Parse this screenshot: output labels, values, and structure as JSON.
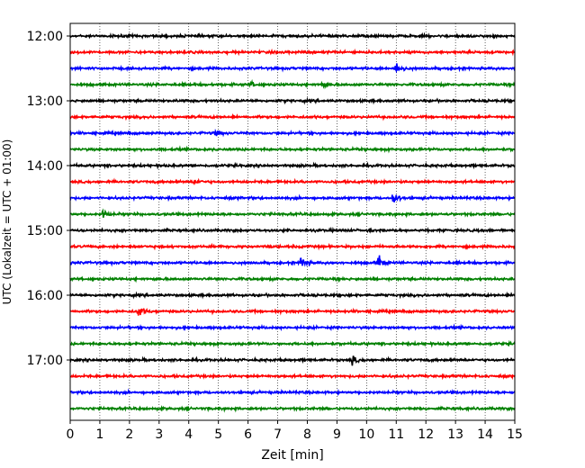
{
  "chart_data": {
    "type": "line",
    "subtype": "helicorder",
    "xlabel": "Zeit  [min]",
    "ylabel": "UTC (Lokalzeit = UTC + 01:00)",
    "xlim": [
      0,
      15
    ],
    "x_ticks": [
      "0",
      "1",
      "2",
      "3",
      "4",
      "5",
      "6",
      "7",
      "8",
      "9",
      "10",
      "11",
      "12",
      "13",
      "14",
      "15"
    ],
    "y_tick_labels": [
      "12:00",
      "13:00",
      "14:00",
      "15:00",
      "16:00",
      "17:00"
    ],
    "row_start": "12:00",
    "row_minutes": 15,
    "grid": "vertical-dotted",
    "trace_colors": [
      "#000000",
      "#ff0000",
      "#0000ff",
      "#008000"
    ],
    "events": [
      {
        "row": "12:30",
        "minute": 11.0,
        "amplitude": "large"
      },
      {
        "row": "12:45",
        "minute": 6.1,
        "amplitude": "small"
      },
      {
        "row": "12:45",
        "minute": 8.5,
        "amplitude": "small"
      },
      {
        "row": "13:30",
        "minute": 4.9,
        "amplitude": "small"
      },
      {
        "row": "14:15",
        "minute": 4.2,
        "amplitude": "small"
      },
      {
        "row": "14:30",
        "minute": 10.9,
        "amplitude": "large"
      },
      {
        "row": "14:45",
        "minute": 1.1,
        "amplitude": "medium"
      },
      {
        "row": "15:30",
        "minute": 7.8,
        "amplitude": "large"
      },
      {
        "row": "15:30",
        "minute": 10.4,
        "amplitude": "large"
      },
      {
        "row": "16:15",
        "minute": 2.3,
        "amplitude": "large"
      },
      {
        "row": "17:00",
        "minute": 9.5,
        "amplitude": "medium"
      }
    ]
  }
}
